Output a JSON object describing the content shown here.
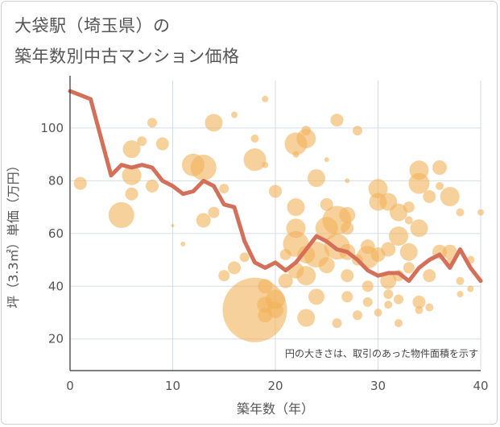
{
  "title_line1": "大袋駅（埼玉県）の",
  "title_line2": "築年数別中古マンション価格",
  "chart_data": {
    "type": "scatter",
    "xlabel": "築年数（年）",
    "ylabel": "坪（3.3㎡）単価（万円）",
    "xlim": [
      0,
      40
    ],
    "ylim": [
      8,
      118
    ],
    "xticks": [
      0,
      10,
      20,
      30,
      40
    ],
    "yticks": [
      20,
      40,
      60,
      80,
      100
    ],
    "grid": true,
    "note": "円の大きさは、取引のあった物件面積を示す",
    "colors": {
      "bubble": "#f2b25a",
      "line": "#d4705a"
    },
    "line_series": {
      "x": [
        0,
        2,
        4,
        5,
        6,
        7,
        8,
        9,
        10,
        11,
        12,
        13,
        14,
        15,
        16,
        17,
        18,
        19,
        20,
        21,
        22,
        23,
        24,
        25,
        26,
        27,
        28,
        29,
        30,
        31,
        32,
        33,
        34,
        35,
        36,
        37,
        38,
        39,
        40
      ],
      "y": [
        114,
        111,
        82,
        86,
        85,
        86,
        85,
        80,
        78,
        75,
        76,
        80,
        78,
        71,
        70,
        57,
        49,
        47,
        49,
        46,
        49,
        54,
        59,
        57,
        54,
        53,
        50,
        46,
        44,
        45,
        45,
        42,
        47,
        50,
        52,
        47,
        54,
        47,
        42
      ]
    },
    "bubbles": [
      {
        "x": 1,
        "y": 79,
        "s": 8
      },
      {
        "x": 5,
        "y": 67,
        "s": 16
      },
      {
        "x": 6,
        "y": 92,
        "s": 11
      },
      {
        "x": 6,
        "y": 82,
        "s": 12
      },
      {
        "x": 6,
        "y": 75,
        "s": 8
      },
      {
        "x": 7,
        "y": 95,
        "s": 6
      },
      {
        "x": 8,
        "y": 102,
        "s": 6
      },
      {
        "x": 8,
        "y": 78,
        "s": 8
      },
      {
        "x": 9,
        "y": 94,
        "s": 8
      },
      {
        "x": 10,
        "y": 63,
        "s": 2
      },
      {
        "x": 11,
        "y": 56,
        "s": 3
      },
      {
        "x": 12,
        "y": 86,
        "s": 14
      },
      {
        "x": 13,
        "y": 85,
        "s": 16
      },
      {
        "x": 13,
        "y": 65,
        "s": 9
      },
      {
        "x": 14,
        "y": 102,
        "s": 11
      },
      {
        "x": 14,
        "y": 68,
        "s": 7
      },
      {
        "x": 15,
        "y": 77,
        "s": 6
      },
      {
        "x": 15,
        "y": 44,
        "s": 7
      },
      {
        "x": 16,
        "y": 105,
        "s": 4
      },
      {
        "x": 16,
        "y": 47,
        "s": 8
      },
      {
        "x": 17,
        "y": 51,
        "s": 6
      },
      {
        "x": 18,
        "y": 31,
        "s": 40
      },
      {
        "x": 18,
        "y": 88,
        "s": 14
      },
      {
        "x": 18,
        "y": 96,
        "s": 5
      },
      {
        "x": 19,
        "y": 111,
        "s": 4
      },
      {
        "x": 19,
        "y": 86,
        "s": 4
      },
      {
        "x": 19,
        "y": 40,
        "s": 9
      },
      {
        "x": 19,
        "y": 33,
        "s": 10
      },
      {
        "x": 19,
        "y": 29,
        "s": 9
      },
      {
        "x": 20,
        "y": 76,
        "s": 8
      },
      {
        "x": 20,
        "y": 35,
        "s": 12
      },
      {
        "x": 20,
        "y": 31,
        "s": 10
      },
      {
        "x": 21,
        "y": 52,
        "s": 7
      },
      {
        "x": 21,
        "y": 42,
        "s": 9
      },
      {
        "x": 22,
        "y": 94,
        "s": 14
      },
      {
        "x": 22,
        "y": 70,
        "s": 11
      },
      {
        "x": 22,
        "y": 62,
        "s": 12
      },
      {
        "x": 22,
        "y": 56,
        "s": 16
      },
      {
        "x": 22,
        "y": 46,
        "s": 10
      },
      {
        "x": 22,
        "y": 90,
        "s": 4
      },
      {
        "x": 23,
        "y": 96,
        "s": 12
      },
      {
        "x": 23,
        "y": 99,
        "s": 6
      },
      {
        "x": 23,
        "y": 52,
        "s": 11
      },
      {
        "x": 23,
        "y": 44,
        "s": 12
      },
      {
        "x": 23,
        "y": 28,
        "s": 11
      },
      {
        "x": 24,
        "y": 81,
        "s": 11
      },
      {
        "x": 24,
        "y": 52,
        "s": 16
      },
      {
        "x": 24,
        "y": 36,
        "s": 10
      },
      {
        "x": 25,
        "y": 88,
        "s": 3
      },
      {
        "x": 25,
        "y": 71,
        "s": 8
      },
      {
        "x": 25,
        "y": 62,
        "s": 14
      },
      {
        "x": 25,
        "y": 48,
        "s": 10
      },
      {
        "x": 26,
        "y": 103,
        "s": 8
      },
      {
        "x": 26,
        "y": 65,
        "s": 18
      },
      {
        "x": 26,
        "y": 55,
        "s": 16
      },
      {
        "x": 26,
        "y": 26,
        "s": 6
      },
      {
        "x": 27,
        "y": 67,
        "s": 10
      },
      {
        "x": 27,
        "y": 62,
        "s": 8
      },
      {
        "x": 27,
        "y": 53,
        "s": 10
      },
      {
        "x": 27,
        "y": 44,
        "s": 8
      },
      {
        "x": 27,
        "y": 36,
        "s": 7
      },
      {
        "x": 27,
        "y": 80,
        "s": 3
      },
      {
        "x": 28,
        "y": 99,
        "s": 6
      },
      {
        "x": 28,
        "y": 50,
        "s": 7
      },
      {
        "x": 28,
        "y": 29,
        "s": 6
      },
      {
        "x": 29,
        "y": 55,
        "s": 9
      },
      {
        "x": 29,
        "y": 51,
        "s": 14
      },
      {
        "x": 29,
        "y": 40,
        "s": 7
      },
      {
        "x": 29,
        "y": 34,
        "s": 6
      },
      {
        "x": 30,
        "y": 77,
        "s": 12
      },
      {
        "x": 30,
        "y": 72,
        "s": 11
      },
      {
        "x": 30,
        "y": 52,
        "s": 9
      },
      {
        "x": 30,
        "y": 30,
        "s": 5
      },
      {
        "x": 31,
        "y": 72,
        "s": 11
      },
      {
        "x": 31,
        "y": 54,
        "s": 9
      },
      {
        "x": 31,
        "y": 42,
        "s": 10
      },
      {
        "x": 31,
        "y": 37,
        "s": 6
      },
      {
        "x": 31,
        "y": 33,
        "s": 5
      },
      {
        "x": 32,
        "y": 68,
        "s": 11
      },
      {
        "x": 32,
        "y": 59,
        "s": 12
      },
      {
        "x": 32,
        "y": 44,
        "s": 7
      },
      {
        "x": 32,
        "y": 35,
        "s": 6
      },
      {
        "x": 32,
        "y": 26,
        "s": 5
      },
      {
        "x": 33,
        "y": 70,
        "s": 7
      },
      {
        "x": 33,
        "y": 65,
        "s": 5
      },
      {
        "x": 33,
        "y": 53,
        "s": 11
      },
      {
        "x": 33,
        "y": 47,
        "s": 7
      },
      {
        "x": 34,
        "y": 84,
        "s": 12
      },
      {
        "x": 34,
        "y": 79,
        "s": 13
      },
      {
        "x": 34,
        "y": 62,
        "s": 11
      },
      {
        "x": 34,
        "y": 34,
        "s": 8
      },
      {
        "x": 34,
        "y": 31,
        "s": 5
      },
      {
        "x": 35,
        "y": 74,
        "s": 8
      },
      {
        "x": 35,
        "y": 44,
        "s": 8
      },
      {
        "x": 35,
        "y": 32,
        "s": 5
      },
      {
        "x": 36,
        "y": 85,
        "s": 9
      },
      {
        "x": 36,
        "y": 78,
        "s": 5
      },
      {
        "x": 36,
        "y": 53,
        "s": 9
      },
      {
        "x": 37,
        "y": 74,
        "s": 12
      },
      {
        "x": 37,
        "y": 53,
        "s": 9
      },
      {
        "x": 37,
        "y": 49,
        "s": 5
      },
      {
        "x": 38,
        "y": 68,
        "s": 5
      },
      {
        "x": 38,
        "y": 42,
        "s": 5
      },
      {
        "x": 38,
        "y": 37,
        "s": 4
      },
      {
        "x": 39,
        "y": 50,
        "s": 5
      },
      {
        "x": 39,
        "y": 39,
        "s": 4
      },
      {
        "x": 40,
        "y": 68,
        "s": 4
      }
    ]
  }
}
